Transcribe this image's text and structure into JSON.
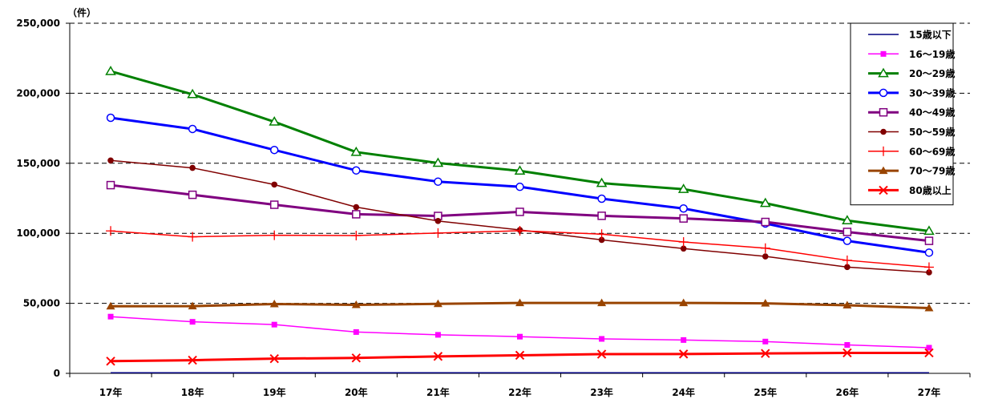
{
  "chart_data": {
    "type": "line",
    "unit_label": "（件）",
    "categories": [
      "17年",
      "18年",
      "19年",
      "20年",
      "21年",
      "22年",
      "23年",
      "24年",
      "25年",
      "26年",
      "27年"
    ],
    "ylim": [
      0,
      250000
    ],
    "y_ticks": [
      {
        "value": 0,
        "label": "0"
      },
      {
        "value": 50000,
        "label": "50,000"
      },
      {
        "value": 100000,
        "label": "100,000"
      },
      {
        "value": 150000,
        "label": "150,000"
      },
      {
        "value": 200000,
        "label": "200,000"
      },
      {
        "value": 250000,
        "label": "250,000"
      }
    ],
    "grid": "horizontal dashed",
    "legend_position": "top-right",
    "series": [
      {
        "name": "15歳以下",
        "color": "#000080",
        "marker": "none",
        "width": 1.5,
        "values": [
          400,
          400,
          400,
          400,
          400,
          400,
          400,
          400,
          400,
          400,
          400
        ]
      },
      {
        "name": "16～19歳",
        "color": "#ff00ff",
        "marker": "square-filled",
        "width": 1.5,
        "values": [
          40500,
          36800,
          34800,
          29500,
          27500,
          26200,
          24600,
          23800,
          22700,
          20300,
          18300
        ]
      },
      {
        "name": "20～29歳",
        "color": "#008000",
        "marker": "triangle-open",
        "width": 3,
        "values": [
          215700,
          199200,
          179600,
          158000,
          150200,
          144600,
          135800,
          131500,
          121500,
          109100,
          101600
        ]
      },
      {
        "name": "30～39歳",
        "color": "#0000ff",
        "marker": "circle-open",
        "width": 3,
        "values": [
          182500,
          174500,
          159500,
          144900,
          136900,
          133200,
          124700,
          117700,
          107000,
          94600,
          86200
        ]
      },
      {
        "name": "40～49歳",
        "color": "#800080",
        "marker": "square-open",
        "width": 3,
        "values": [
          134400,
          127500,
          120400,
          113600,
          112400,
          115300,
          112500,
          110600,
          108100,
          101000,
          94600
        ]
      },
      {
        "name": "50～59歳",
        "color": "#800000",
        "marker": "circle-filled",
        "width": 1.5,
        "values": [
          152000,
          146700,
          134800,
          118700,
          108800,
          102400,
          95300,
          89100,
          83500,
          75900,
          72100
        ]
      },
      {
        "name": "60～69歳",
        "color": "#ff0000",
        "marker": "plus",
        "width": 1.5,
        "values": [
          101700,
          97500,
          98600,
          98400,
          100200,
          101800,
          99400,
          93800,
          89400,
          80700,
          75800
        ]
      },
      {
        "name": "70～79歳",
        "color": "#994400",
        "marker": "triangle-filled",
        "width": 3,
        "values": [
          47900,
          48000,
          49500,
          48900,
          49600,
          50300,
          50300,
          50300,
          50000,
          48600,
          46600
        ]
      },
      {
        "name": "80歳以上",
        "color": "#ff0000",
        "marker": "x",
        "width": 3,
        "values": [
          8700,
          9400,
          10500,
          11000,
          12100,
          12900,
          13700,
          13800,
          14200,
          14600,
          14600
        ]
      }
    ]
  }
}
